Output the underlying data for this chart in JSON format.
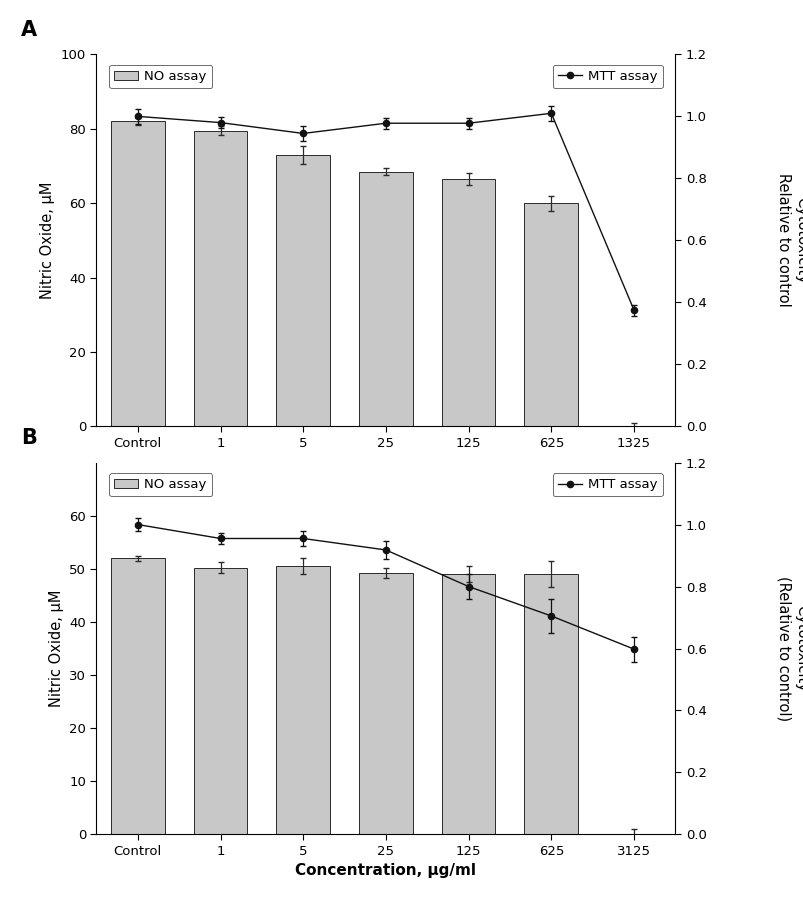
{
  "panel_A": {
    "categories": [
      "Control",
      "1",
      "5",
      "25",
      "125",
      "625",
      "1325"
    ],
    "bar_values": [
      82.0,
      79.5,
      73.0,
      68.5,
      66.5,
      60.0,
      0
    ],
    "bar_errors": [
      1.0,
      1.2,
      2.5,
      1.0,
      1.5,
      2.0,
      0
    ],
    "mtt_values": [
      1.0,
      0.98,
      0.945,
      0.978,
      0.978,
      1.01,
      0.375
    ],
    "mtt_errors": [
      0.025,
      0.018,
      0.025,
      0.018,
      0.018,
      0.025,
      0.018
    ],
    "ylim_left": [
      0,
      100
    ],
    "ylim_right": [
      0.0,
      1.2
    ],
    "yticks_left": [
      0,
      20,
      40,
      60,
      80,
      100
    ],
    "yticks_right": [
      0.0,
      0.2,
      0.4,
      0.6,
      0.8,
      1.0,
      1.2
    ],
    "ylabel_left": "Nitric Oxide, μM",
    "ylabel_right": "Cytotoxicity\nRelative to control",
    "panel_label": "A"
  },
  "panel_B": {
    "categories": [
      "Control",
      "1",
      "5",
      "25",
      "125",
      "625",
      "3125"
    ],
    "bar_values": [
      52.0,
      50.2,
      50.5,
      49.2,
      49.0,
      49.0,
      0
    ],
    "bar_errors": [
      0.5,
      1.0,
      1.5,
      1.0,
      1.5,
      2.5,
      0
    ],
    "mtt_values": [
      1.0,
      0.955,
      0.955,
      0.918,
      0.8,
      0.705,
      0.598
    ],
    "mtt_errors": [
      0.02,
      0.018,
      0.025,
      0.028,
      0.04,
      0.055,
      0.04
    ],
    "ylim_left": [
      0,
      70
    ],
    "ylim_right": [
      0.0,
      1.2
    ],
    "yticks_left": [
      0,
      10,
      20,
      30,
      40,
      50,
      60
    ],
    "yticks_right": [
      0.0,
      0.2,
      0.4,
      0.6,
      0.8,
      1.0,
      1.2
    ],
    "ylabel_left": "Nitric Oxide, μM",
    "ylabel_right": "Cytotoxicity\n(Relative to control)",
    "xlabel": "Concentration, μg/ml",
    "panel_label": "B"
  },
  "bar_color": "#c8c8c8",
  "bar_edgecolor": "#2a2a2a",
  "line_color": "#111111",
  "marker_color": "#111111",
  "background_color": "#ffffff",
  "bar_width": 0.65
}
